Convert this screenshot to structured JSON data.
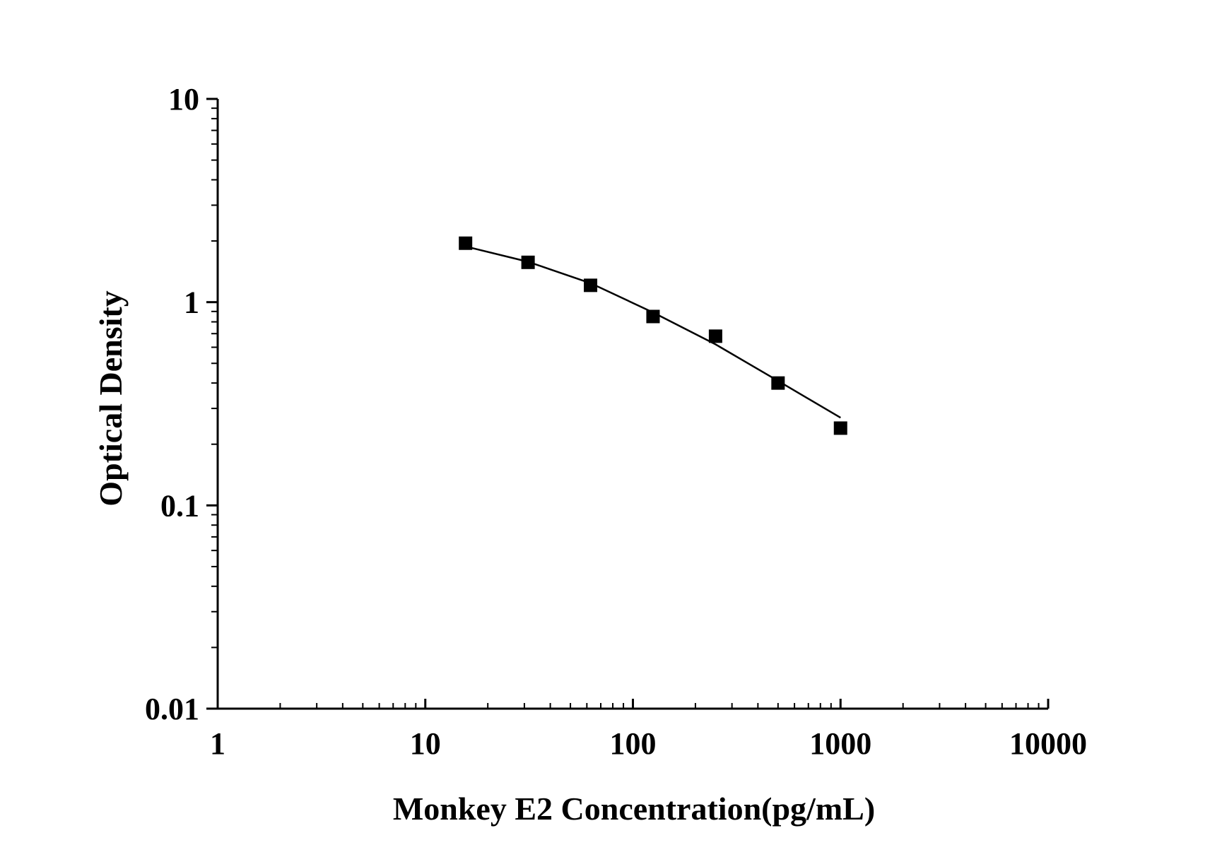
{
  "chart_data": {
    "type": "scatter",
    "title": "",
    "xlabel": "Monkey E2 Concentration(pg/mL)",
    "ylabel": "Optical Density",
    "x_scale": "log",
    "y_scale": "log",
    "xlim": [
      1,
      10000
    ],
    "ylim": [
      0.01,
      10
    ],
    "x_tick_labels": [
      "1",
      "10",
      "100",
      "1000",
      "10000"
    ],
    "y_tick_labels": [
      "0.01",
      "0.1",
      "1",
      "10"
    ],
    "grid": false,
    "legend": "none",
    "series": [
      {
        "marker": "square",
        "color": "#000000",
        "x": [
          15.625,
          31.25,
          62.5,
          125,
          250,
          500,
          1000
        ],
        "y": [
          1.95,
          1.57,
          1.21,
          0.85,
          0.68,
          0.4,
          0.24
        ]
      }
    ],
    "fit_curve": {
      "color": "#000000",
      "x": [
        15.625,
        31.25,
        62.5,
        125,
        250,
        500,
        1000
      ],
      "y": [
        1.88,
        1.58,
        1.24,
        0.89,
        0.62,
        0.41,
        0.27
      ]
    }
  }
}
